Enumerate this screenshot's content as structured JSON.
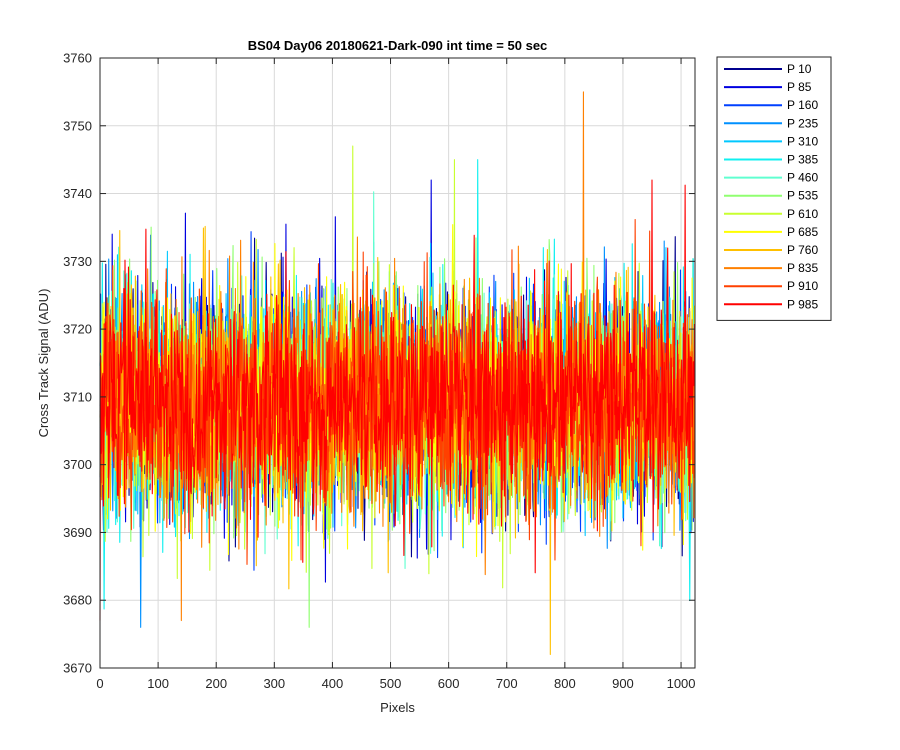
{
  "chart_data": {
    "type": "line",
    "title": "BS04 Day06 20180621-Dark-090 int time = 50 sec",
    "xlabel": "Pixels",
    "ylabel": "Cross Track Signal (ADU)",
    "xlim": [
      0,
      1024
    ],
    "ylim": [
      3670,
      3760
    ],
    "x_ticks": [
      0,
      100,
      200,
      300,
      400,
      500,
      600,
      700,
      800,
      900,
      1000
    ],
    "y_ticks": [
      3670,
      3680,
      3690,
      3700,
      3710,
      3720,
      3730,
      3740,
      3750,
      3760
    ],
    "grid": true,
    "legend_position": "outside-top-right",
    "noise_center": 3709,
    "noise_sigma": 8,
    "series": [
      {
        "name": "P 10",
        "color": "#00008f"
      },
      {
        "name": "P 85",
        "color": "#0000e0"
      },
      {
        "name": "P 160",
        "color": "#0040ff"
      },
      {
        "name": "P 235",
        "color": "#0090ff"
      },
      {
        "name": "P 310",
        "color": "#00c8ff"
      },
      {
        "name": "P 385",
        "color": "#10f0f0"
      },
      {
        "name": "P 460",
        "color": "#60ffd0"
      },
      {
        "name": "P 535",
        "color": "#90ff70"
      },
      {
        "name": "P 610",
        "color": "#c8ff30"
      },
      {
        "name": "P 685",
        "color": "#ffff00"
      },
      {
        "name": "P 760",
        "color": "#ffc000"
      },
      {
        "name": "P 835",
        "color": "#ff8000"
      },
      {
        "name": "P 910",
        "color": "#ff4000"
      },
      {
        "name": "P 985",
        "color": "#ff0000"
      }
    ],
    "outliers": [
      {
        "series": "P 835",
        "x": 832,
        "y": 3755
      },
      {
        "series": "P 760",
        "x": 775,
        "y": 3672
      },
      {
        "series": "P 610",
        "x": 435,
        "y": 3747
      },
      {
        "series": "P 610",
        "x": 610,
        "y": 3745
      },
      {
        "series": "P 385",
        "x": 650,
        "y": 3745
      },
      {
        "series": "P 985",
        "x": 950,
        "y": 3742
      },
      {
        "series": "P 85",
        "x": 570,
        "y": 3742
      },
      {
        "series": "P 235",
        "x": 70,
        "y": 3676
      },
      {
        "series": "P 535",
        "x": 360,
        "y": 3676
      },
      {
        "series": "P 835",
        "x": 140,
        "y": 3677
      },
      {
        "series": "P 985",
        "x": 0,
        "y": 3677
      }
    ]
  }
}
